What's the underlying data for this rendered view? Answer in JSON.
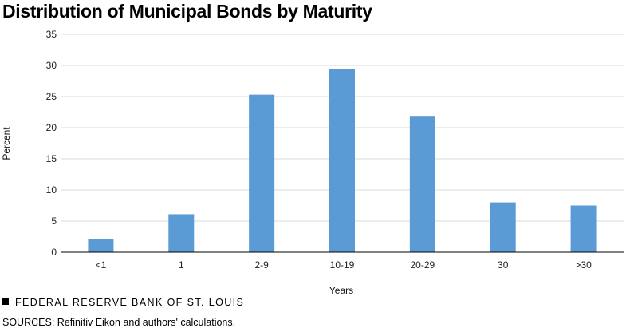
{
  "title": "Distribution of Municipal Bonds by Maturity",
  "footer": {
    "organization": "FEDERAL RESERVE BANK OF ST. LOUIS",
    "sources": "SOURCES: Refinitiv Eikon and authors' calculations."
  },
  "colors": {
    "bar": "#5b9bd5",
    "grid": "#d9d9d9",
    "axis": "#000000"
  },
  "chart_data": {
    "type": "bar",
    "xlabel": "Years",
    "ylabel": "Percent",
    "ylim": [
      0,
      35
    ],
    "yticks": [
      0,
      5,
      10,
      15,
      20,
      25,
      30,
      35
    ],
    "grid": true,
    "categories": [
      "<1",
      "1",
      "2-9",
      "10-19",
      "20-29",
      "30",
      ">30"
    ],
    "values": [
      2.1,
      6.1,
      25.3,
      29.4,
      21.9,
      8.0,
      7.5
    ]
  }
}
